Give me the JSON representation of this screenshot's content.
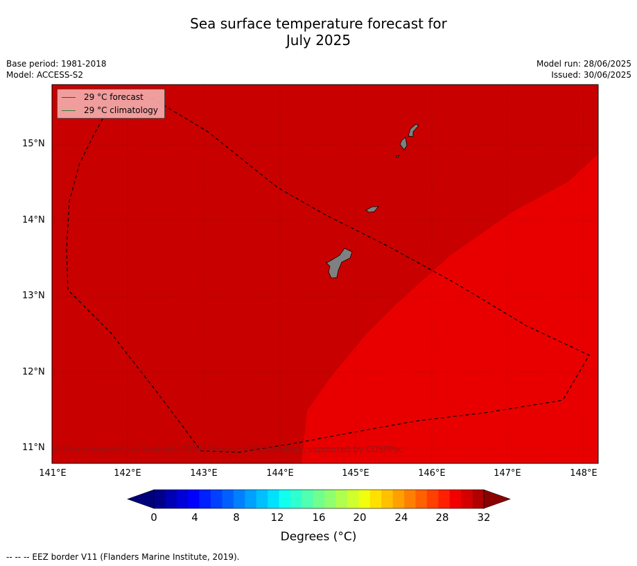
{
  "title_line1": "Sea surface temperature forecast for",
  "title_line2": "July 2025",
  "meta_left": [
    "Base period: 1981-2018",
    "Model: ACCESS-S2"
  ],
  "meta_right": [
    "Model run: 28/06/2025",
    "Issued: 30/06/2025"
  ],
  "legend": {
    "forecast_label": "29 °C  forecast",
    "forecast_color": "#7b1fa2",
    "climatology_label": "29 °C  climatology",
    "climatology_color": "#2e7d32"
  },
  "latitudes": [
    "15°N",
    "14°N",
    "13°N",
    "12°N",
    "11°N"
  ],
  "longitudes": [
    "141°E",
    "142°E",
    "143°E",
    "144°E",
    "145°E",
    "146°E",
    "147°E",
    "148°E"
  ],
  "colorbar": {
    "ticks": [
      "0",
      "4",
      "8",
      "12",
      "16",
      "20",
      "24",
      "28",
      "32"
    ],
    "title": "Degrees (°C)",
    "colors": [
      "#00008b",
      "#0000b4",
      "#0000d8",
      "#0000ff",
      "#0020ff",
      "#0040ff",
      "#0060ff",
      "#0080ff",
      "#00a0ff",
      "#00c0ff",
      "#00e0ff",
      "#10ffef",
      "#30ffcf",
      "#50ffaf",
      "#70ff8f",
      "#90ff6f",
      "#b0ff4f",
      "#d0ff2f",
      "#f0ff0f",
      "#ffe000",
      "#ffc000",
      "#ffa000",
      "#ff8000",
      "#ff6000",
      "#ff4000",
      "#ff2000",
      "#f20000",
      "#d40000",
      "#b00000"
    ],
    "under_color": "#00007a",
    "over_color": "#8b0000"
  },
  "map_colors": {
    "region_30_31": "#c80000",
    "region_29_30": "#e80000",
    "land": "#808080"
  },
  "copyright": "© Commonwealth of Australia 2025, Bureau of Meteorology, supported by COSPPac",
  "footnote": "--  --  -- EEZ border V11 (Flanders Marine Institute, 2019)."
}
